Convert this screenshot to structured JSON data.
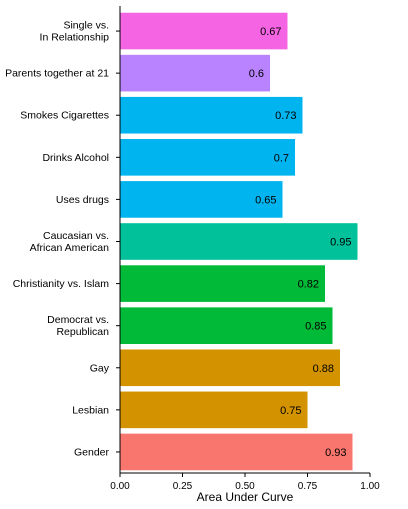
{
  "chart_data": {
    "type": "bar",
    "orientation": "horizontal",
    "title": "",
    "xlabel": "Area Under Curve",
    "ylabel": "",
    "xlim": [
      0,
      1
    ],
    "xticks": [
      "0.00",
      "0.25",
      "0.50",
      "0.75",
      "1.00"
    ],
    "grid": false,
    "categories": [
      [
        "Single vs.",
        "In Relationship"
      ],
      [
        "Parents together at 21"
      ],
      [
        "Smokes Cigarettes"
      ],
      [
        "Drinks Alcohol"
      ],
      [
        "Uses drugs"
      ],
      [
        "Caucasian vs.",
        "African American"
      ],
      [
        "Christianity vs. Islam"
      ],
      [
        "Democrat vs.",
        "Republican"
      ],
      [
        "Gay"
      ],
      [
        "Lesbian"
      ],
      [
        "Gender"
      ]
    ],
    "values": [
      0.67,
      0.6,
      0.73,
      0.7,
      0.65,
      0.95,
      0.82,
      0.85,
      0.88,
      0.75,
      0.93
    ],
    "value_labels": [
      "0.67",
      "0.6",
      "0.73",
      "0.7",
      "0.65",
      "0.95",
      "0.82",
      "0.85",
      "0.88",
      "0.75",
      "0.93"
    ],
    "colors": [
      "#f564e3",
      "#b983ff",
      "#00b4f0",
      "#00b4f0",
      "#00b4f0",
      "#00c19a",
      "#00ba38",
      "#00ba38",
      "#d39200",
      "#d39200",
      "#f8766d"
    ]
  }
}
